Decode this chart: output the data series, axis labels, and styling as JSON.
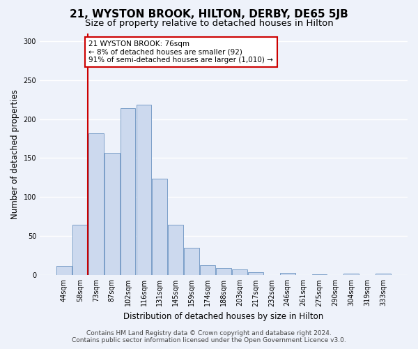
{
  "title": "21, WYSTON BROOK, HILTON, DERBY, DE65 5JB",
  "subtitle": "Size of property relative to detached houses in Hilton",
  "xlabel": "Distribution of detached houses by size in Hilton",
  "ylabel": "Number of detached properties",
  "categories": [
    "44sqm",
    "58sqm",
    "73sqm",
    "87sqm",
    "102sqm",
    "116sqm",
    "131sqm",
    "145sqm",
    "159sqm",
    "174sqm",
    "188sqm",
    "203sqm",
    "217sqm",
    "232sqm",
    "246sqm",
    "261sqm",
    "275sqm",
    "290sqm",
    "304sqm",
    "319sqm",
    "333sqm"
  ],
  "values": [
    12,
    65,
    182,
    157,
    214,
    218,
    124,
    65,
    35,
    13,
    9,
    7,
    4,
    0,
    3,
    0,
    1,
    0,
    2,
    0,
    2
  ],
  "bar_color": "#ccd9ee",
  "bar_edge_color": "#7a9ec8",
  "highlight_index": 2,
  "highlight_line_color": "#cc0000",
  "annotation_text": "21 WYSTON BROOK: 76sqm\n← 8% of detached houses are smaller (92)\n91% of semi-detached houses are larger (1,010) →",
  "annotation_box_color": "#ffffff",
  "annotation_box_edge_color": "#cc0000",
  "ylim": [
    0,
    310
  ],
  "yticks": [
    0,
    50,
    100,
    150,
    200,
    250,
    300
  ],
  "footer_line1": "Contains HM Land Registry data © Crown copyright and database right 2024.",
  "footer_line2": "Contains public sector information licensed under the Open Government Licence v3.0.",
  "background_color": "#eef2fa",
  "grid_color": "#ffffff",
  "title_fontsize": 11,
  "subtitle_fontsize": 9.5,
  "axis_label_fontsize": 8.5,
  "tick_fontsize": 7,
  "footer_fontsize": 6.5,
  "annotation_fontsize": 7.5
}
